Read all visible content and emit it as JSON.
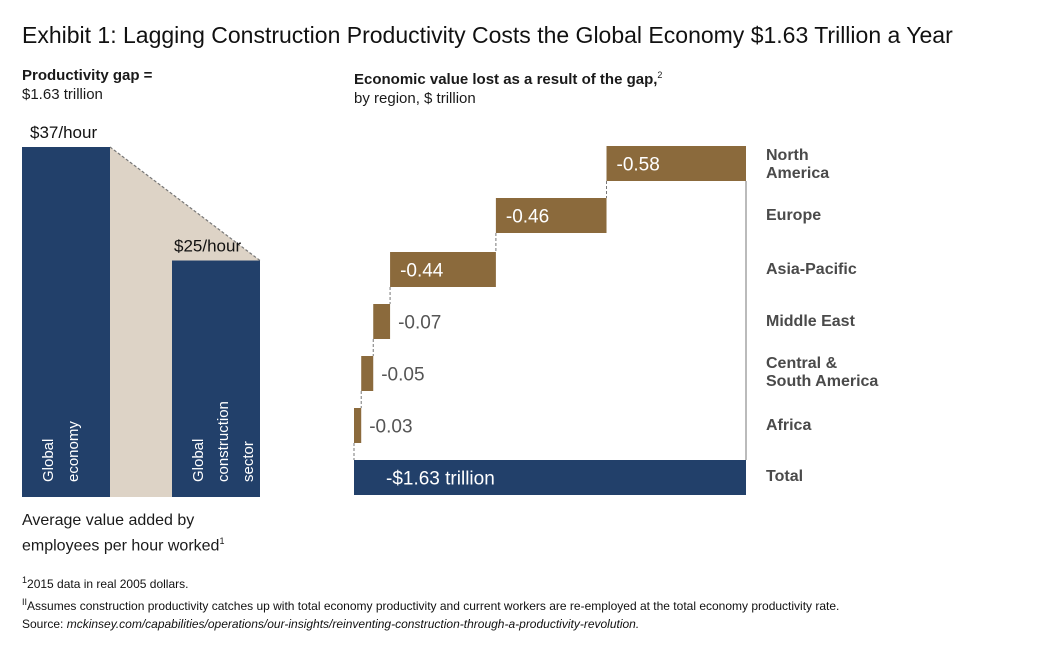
{
  "title": "Exhibit 1: Lagging Construction Productivity Costs the Global Economy $1.63 Trillion a Year",
  "left_panel": {
    "heading_line1": "Productivity gap =",
    "heading_line2": "$1.63 trillion",
    "caption_line1": "Average value added by",
    "caption_line2": "employees per hour worked",
    "caption_mark": "1"
  },
  "right_panel": {
    "heading_line1": "Economic value lost as a result of the gap,",
    "heading_mark": "2",
    "heading_line2": "by region, $ trillion"
  },
  "footnotes": {
    "note1_mark": "1",
    "note1": "2015 data in real 2005 dollars.",
    "note2_mark": "II",
    "note2": "Assumes construction productivity catches up with total economy productivity and current workers are re-employed at the total economy productivity rate.",
    "source_label": "Source: ",
    "source_url": "mckinsey.com/capabilities/operations/our-insights/reinventing-construction-through-a-productivity-revolution."
  },
  "colors": {
    "navy": "#22406a",
    "bronze": "#8b6a3c",
    "beige": "#ddd3c6",
    "connector": "#777777",
    "label_gray": "#555555"
  },
  "chart_data": [
    {
      "type": "bar",
      "categories": [
        "Global economy",
        "Global construction sector"
      ],
      "values": [
        37,
        25
      ],
      "value_labels": [
        "$37/hour",
        "$25/hour"
      ],
      "unit": "$/hour",
      "gap_label": "Productivity gap = $1.63 trillion"
    },
    {
      "type": "waterfall",
      "categories": [
        "North America",
        "Europe",
        "Asia-Pacific",
        "Middle East",
        "Central & South America",
        "Africa",
        "Total"
      ],
      "category_lines": [
        [
          "North",
          "America"
        ],
        [
          "Europe"
        ],
        [
          "Asia-Pacific"
        ],
        [
          "Middle East"
        ],
        [
          "Central &",
          "South America"
        ],
        [
          "Africa"
        ],
        [
          "Total"
        ]
      ],
      "values": [
        -0.58,
        -0.46,
        -0.44,
        -0.07,
        -0.05,
        -0.03,
        -1.63
      ],
      "labels": [
        "-0.58",
        "-0.46",
        "-0.44",
        "-0.07",
        "-0.05",
        "-0.03",
        "-$1.63 trillion"
      ],
      "total_index": 6,
      "unit": "$ trillion"
    }
  ]
}
